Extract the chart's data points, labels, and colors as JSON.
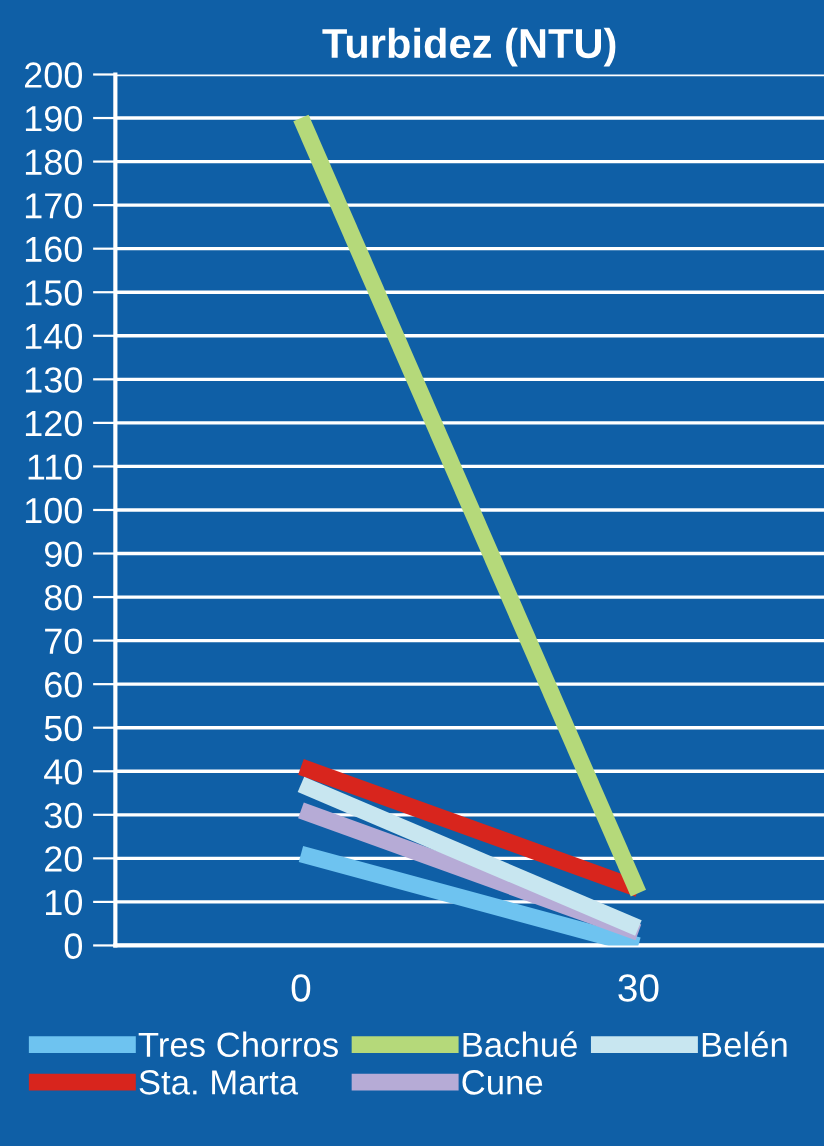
{
  "chart_data": {
    "type": "line",
    "title": "Turbidez (NTU)",
    "categories": [
      "0",
      "30"
    ],
    "series": [
      {
        "name": "Tres Chorros",
        "color": "#6ec3f0",
        "values": [
          21,
          0
        ]
      },
      {
        "name": "Sta. Marta",
        "color": "#d8251d",
        "values": [
          41,
          13
        ]
      },
      {
        "name": "Bachué",
        "color": "#b5d97a",
        "values": [
          190,
          12
        ]
      },
      {
        "name": "Cune",
        "color": "#b6abd6",
        "values": [
          31,
          3
        ]
      },
      {
        "name": "Belén",
        "color": "#c8e6f0",
        "values": [
          37,
          4
        ]
      }
    ],
    "ylim": [
      0,
      200
    ],
    "yticks": [
      0,
      10,
      20,
      30,
      40,
      50,
      60,
      70,
      80,
      90,
      100,
      110,
      120,
      130,
      140,
      150,
      160,
      170,
      180,
      190,
      200
    ],
    "grid": "y",
    "legend": "bottom",
    "marker": "none",
    "line_style": "solid"
  }
}
